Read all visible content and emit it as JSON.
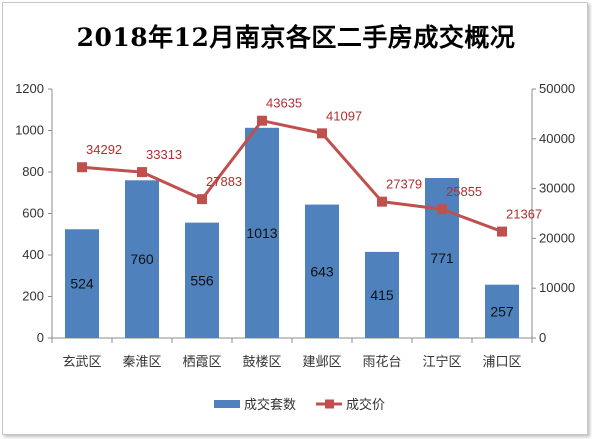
{
  "chart_data": {
    "type": "bar+line",
    "title": "2018年12月南京各区二手房成交概况",
    "categories": [
      "玄武区",
      "秦淮区",
      "栖霞区",
      "鼓楼区",
      "建邺区",
      "雨花台",
      "江宁区",
      "浦口区"
    ],
    "series": [
      {
        "name": "成交套数",
        "type": "bar",
        "axis": "left",
        "color": "#4f81bd",
        "values": [
          524,
          760,
          556,
          1013,
          643,
          415,
          771,
          257
        ]
      },
      {
        "name": "成交价",
        "type": "line",
        "axis": "right",
        "color": "#c0504d",
        "values": [
          34292,
          33313,
          27883,
          43635,
          41097,
          27379,
          25855,
          21367
        ]
      }
    ],
    "y_left": {
      "min": 0,
      "max": 1200,
      "step": 200,
      "ticks": [
        "0",
        "200",
        "400",
        "600",
        "800",
        "1000",
        "1200"
      ]
    },
    "y_right": {
      "min": 0,
      "max": 50000,
      "step": 10000,
      "ticks": [
        "0",
        "10000",
        "20000",
        "30000",
        "40000",
        "50000"
      ]
    },
    "grid": false,
    "legend_position": "bottom",
    "data_labels": true
  }
}
